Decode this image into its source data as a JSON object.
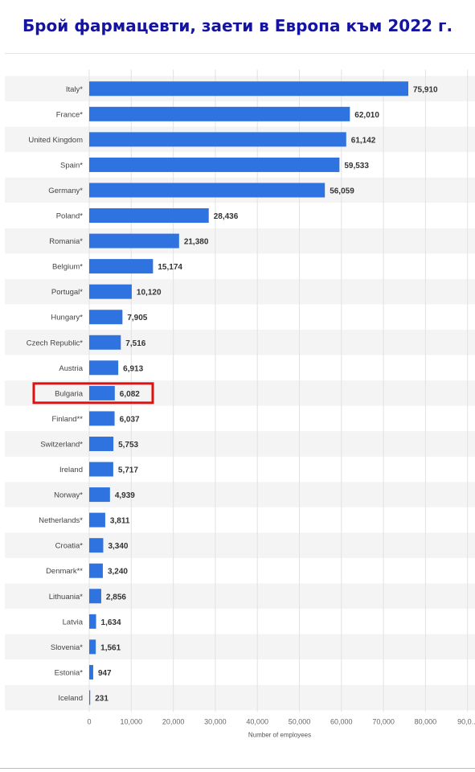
{
  "title": "Брой фармацевти, заети в Европа към 2022 г.",
  "chart_data": {
    "type": "bar",
    "orientation": "horizontal",
    "title": "Брой фармацевти, заети в Европа към 2022 г.",
    "xlabel": "Number of employees",
    "ylabel": "",
    "xlim": [
      0,
      90000
    ],
    "x_ticks": [
      "0",
      "10,000",
      "20,000",
      "30,000",
      "40,000",
      "50,000",
      "60,000",
      "70,000",
      "80,000",
      "90,0..."
    ],
    "categories": [
      "Italy*",
      "France*",
      "United Kingdom",
      "Spain*",
      "Germany*",
      "Poland*",
      "Romania*",
      "Belgium*",
      "Portugal*",
      "Hungary*",
      "Czech Republic*",
      "Austria",
      "Bulgaria",
      "Finland**",
      "Switzerland*",
      "Ireland",
      "Norway*",
      "Netherlands*",
      "Croatia*",
      "Denmark**",
      "Lithuania*",
      "Latvia",
      "Slovenia*",
      "Estonia*",
      "Iceland"
    ],
    "values": [
      75910,
      62010,
      61142,
      59533,
      56059,
      28436,
      21380,
      15174,
      10120,
      7905,
      7516,
      6913,
      6082,
      6037,
      5753,
      5717,
      4939,
      3811,
      3340,
      3240,
      2856,
      1634,
      1561,
      947,
      231
    ],
    "value_labels": [
      "75,910",
      "62,010",
      "61,142",
      "59,533",
      "56,059",
      "28,436",
      "21,380",
      "15,174",
      "10,120",
      "7,905",
      "7,516",
      "6,913",
      "6,082",
      "6,037",
      "5,753",
      "5,717",
      "4,939",
      "3,811",
      "3,340",
      "3,240",
      "2,856",
      "1,634",
      "1,561",
      "947",
      "231"
    ],
    "highlighted_category": "Bulgaria",
    "grid": true,
    "bar_color": "#2f73e0",
    "highlight_color": "#e01010",
    "stripe_color": "#f4f4f4"
  }
}
